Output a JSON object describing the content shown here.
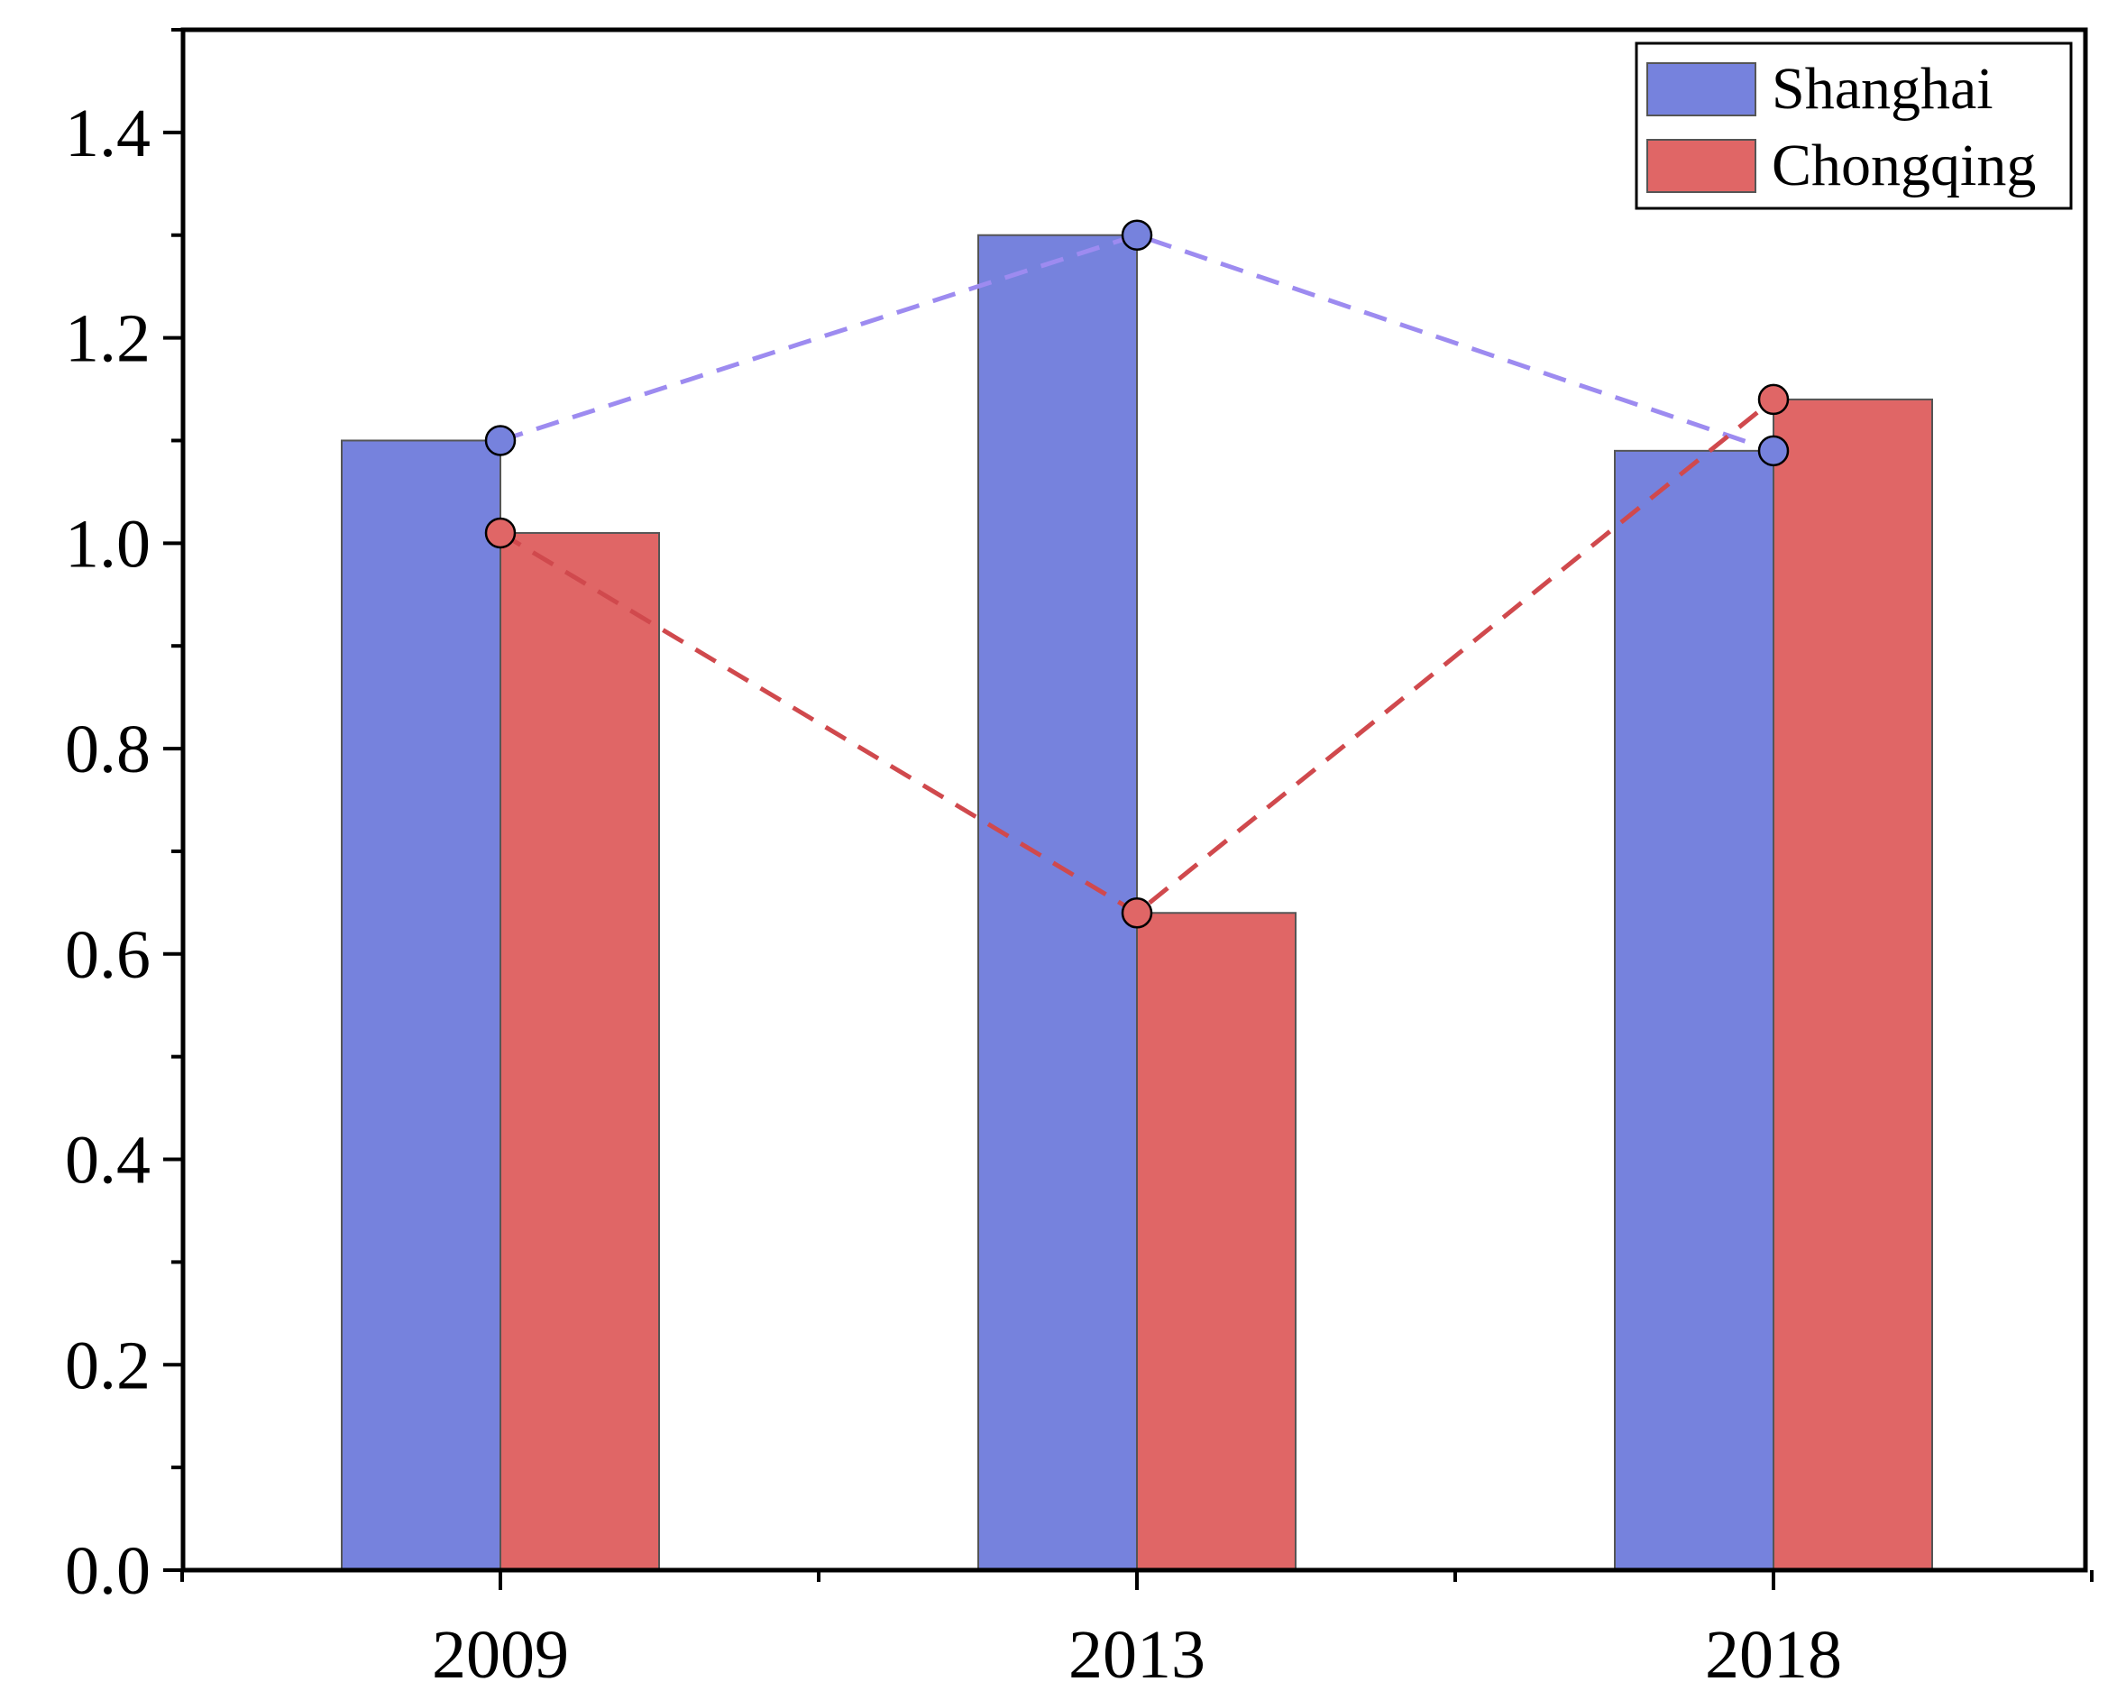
{
  "chart_data": {
    "type": "bar",
    "title": "",
    "xlabel": "",
    "ylabel": "",
    "categories": [
      "2009",
      "2013",
      "2018"
    ],
    "ylim": [
      0,
      1.5
    ],
    "yticks": [
      0.0,
      0.2,
      0.4,
      0.6,
      0.8,
      1.0,
      1.2,
      1.4
    ],
    "ytick_labels": [
      "0.0",
      "0.2",
      "0.4",
      "0.6",
      "0.8",
      "1.0",
      "1.2",
      "1.4"
    ],
    "legend_position": "top-right",
    "overlay_lines": "dashed lines with circle markers connecting each series' values",
    "series": [
      {
        "name": "Shanghai",
        "values": [
          1.1,
          1.3,
          1.09
        ],
        "color": "#7682dd",
        "line_color": "#9d8bf0"
      },
      {
        "name": "Chongqing",
        "values": [
          1.01,
          0.64,
          1.14
        ],
        "color": "#e06666",
        "line_color": "#d0494d"
      }
    ]
  }
}
